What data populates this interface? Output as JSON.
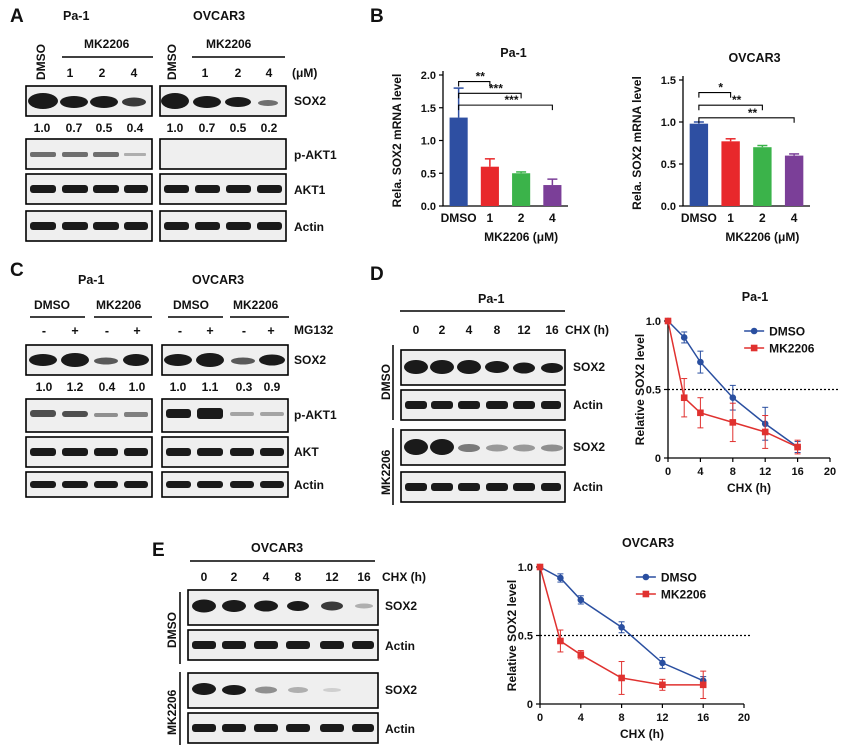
{
  "panels": {
    "A": "A",
    "B": "B",
    "C": "C",
    "D": "D",
    "E": "E"
  },
  "panel_a": {
    "cell_lines": [
      "Pa-1",
      "OVCAR3"
    ],
    "control": "DMSO",
    "treatment": "MK2206",
    "doses": [
      "1",
      "2",
      "4"
    ],
    "unit": "(μM)",
    "rows": [
      "SOX2",
      "p-AKT1",
      "AKT1",
      "Actin"
    ],
    "sox2_quant": {
      "Pa-1": [
        "1.0",
        "0.7",
        "0.5",
        "0.4"
      ],
      "OVCAR3": [
        "1.0",
        "0.7",
        "0.5",
        "0.2"
      ]
    }
  },
  "panel_c": {
    "cell_lines": [
      "Pa-1",
      "OVCAR3"
    ],
    "groups": [
      "DMSO",
      "MK2206"
    ],
    "signs": [
      "-",
      "+",
      "-",
      "+"
    ],
    "reagent": "MG132",
    "rows": [
      "SOX2",
      "p-AKT1",
      "AKT",
      "Actin"
    ],
    "sox2_quant": {
      "Pa-1": [
        "1.0",
        "1.2",
        "0.4",
        "1.0"
      ],
      "OVCAR3": [
        "1.0",
        "1.1",
        "0.3",
        "0.9"
      ]
    }
  },
  "panel_d": {
    "title": "Pa-1",
    "timepoints": [
      "0",
      "2",
      "4",
      "8",
      "12",
      "16"
    ],
    "time_label": "CHX (h)",
    "groups": [
      "DMSO",
      "MK2206"
    ],
    "rows": [
      "SOX2",
      "Actin"
    ]
  },
  "panel_e": {
    "title": "OVCAR3",
    "timepoints": [
      "0",
      "2",
      "4",
      "8",
      "12",
      "16"
    ],
    "time_label": "CHX (h)",
    "groups": [
      "DMSO",
      "MK2206"
    ],
    "rows": [
      "SOX2",
      "Actin"
    ]
  },
  "colors": {
    "dmso_bar": "#2e4fa2",
    "dose1": "#e8282b",
    "dose2": "#3bb34a",
    "dose4": "#7b3f98",
    "dmso_line": "#2a4fa0",
    "mk_line": "#e0312f"
  },
  "chart_data": [
    {
      "id": "B-Pa-1",
      "type": "bar",
      "title": "Pa-1",
      "categories": [
        "DMSO",
        "1",
        "2",
        "4"
      ],
      "values": [
        1.35,
        0.6,
        0.5,
        0.32
      ],
      "errors": [
        0.45,
        0.12,
        0.02,
        0.09
      ],
      "ylabel": "Rela. SOX2 mRNA level",
      "xlabel": "MK2206  (μM)",
      "ylim": [
        0,
        2.0
      ],
      "yticks": [
        "0.0",
        "0.5",
        "1.0",
        "1.5",
        "2.0"
      ],
      "significance": [
        "**",
        "***",
        "***"
      ]
    },
    {
      "id": "B-OVCAR3",
      "type": "bar",
      "title": "OVCAR3",
      "categories": [
        "DMSO",
        "1",
        "2",
        "4"
      ],
      "values": [
        0.98,
        0.77,
        0.7,
        0.6
      ],
      "errors": [
        0.02,
        0.03,
        0.02,
        0.02
      ],
      "ylabel": "Rela. SOX2 mRNA level",
      "xlabel": "MK2206  (μM)",
      "ylim": [
        0,
        1.5
      ],
      "yticks": [
        "0.0",
        "0.5",
        "1.0",
        "1.5"
      ],
      "significance": [
        "*",
        "**",
        "**"
      ]
    },
    {
      "id": "D-curve",
      "type": "line",
      "title": "Pa-1",
      "x": [
        0,
        2,
        4,
        8,
        12,
        16
      ],
      "series": [
        {
          "name": "DMSO",
          "values": [
            1.0,
            0.88,
            0.7,
            0.44,
            0.25,
            0.08
          ],
          "errors": [
            0.01,
            0.04,
            0.08,
            0.09,
            0.12,
            0.04
          ]
        },
        {
          "name": "MK2206",
          "values": [
            1.0,
            0.44,
            0.33,
            0.26,
            0.19,
            0.08
          ],
          "errors": [
            0.01,
            0.14,
            0.11,
            0.14,
            0.12,
            0.05
          ]
        }
      ],
      "xlabel": "CHX (h)",
      "ylabel": "Relative SOX2 level",
      "xlim": [
        0,
        20
      ],
      "ylim": [
        0,
        1.0
      ],
      "xticks": [
        "0",
        "4",
        "8",
        "12",
        "16",
        "20"
      ],
      "yticks": [
        "0",
        "0.5",
        "1.0"
      ],
      "reference_line": 0.5,
      "legend": "top-right"
    },
    {
      "id": "E-curve",
      "type": "line",
      "title": "OVCAR3",
      "x": [
        0,
        2,
        4,
        8,
        12,
        16
      ],
      "series": [
        {
          "name": "DMSO",
          "values": [
            1.0,
            0.92,
            0.76,
            0.56,
            0.3,
            0.17
          ],
          "errors": [
            0.01,
            0.03,
            0.03,
            0.04,
            0.04,
            0.03
          ]
        },
        {
          "name": "MK2206",
          "values": [
            1.0,
            0.46,
            0.36,
            0.19,
            0.14,
            0.14
          ],
          "errors": [
            0.01,
            0.08,
            0.03,
            0.12,
            0.04,
            0.1
          ]
        }
      ],
      "xlabel": "CHX (h)",
      "ylabel": "Relative SOX2 level",
      "xlim": [
        0,
        20
      ],
      "ylim": [
        0,
        1.0
      ],
      "xticks": [
        "0",
        "4",
        "8",
        "12",
        "16",
        "20"
      ],
      "yticks": [
        "0",
        "0.5",
        "1.0"
      ],
      "reference_line": 0.5,
      "legend": "top-right"
    }
  ]
}
